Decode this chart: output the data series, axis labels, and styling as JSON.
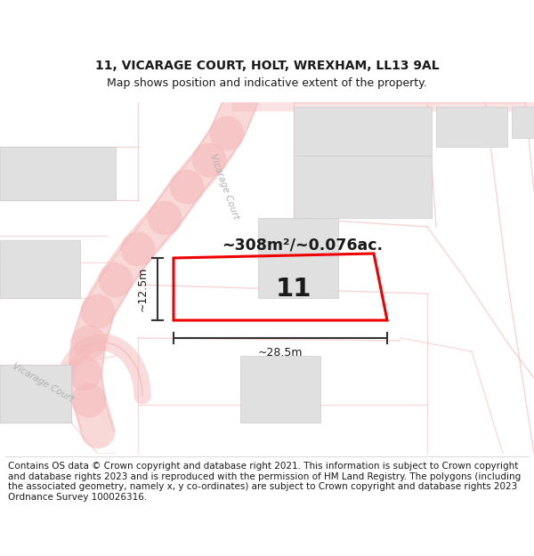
{
  "title_line1": "11, VICARAGE COURT, HOLT, WREXHAM, LL13 9AL",
  "title_line2": "Map shows position and indicative extent of the property.",
  "area_text": "~308m²/~0.076ac.",
  "property_number": "11",
  "dim_width": "~28.5m",
  "dim_height": "~12.5m",
  "copyright_text": "Contains OS data © Crown copyright and database right 2021. This information is subject to Crown copyright and database rights 2023 and is reproduced with the permission of HM Land Registry. The polygons (including the associated geometry, namely x, y co-ordinates) are subject to Crown copyright and database rights 2023 Ordnance Survey 100026316.",
  "bg_color": "#ffffff",
  "road_color": "#f5b8b8",
  "road_outline": "#f0a0a0",
  "building_fill": "#e0e0e0",
  "building_edge": "#cccccc",
  "road_fill": "#f8d8d8",
  "red_poly_color": "#ee0000",
  "dark_text": "#1a1a1a",
  "dim_color": "#333333",
  "road_label_color": "#b0b0b0",
  "title_fontsize": 10,
  "subtitle_fontsize": 9,
  "copyright_fontsize": 7.5
}
